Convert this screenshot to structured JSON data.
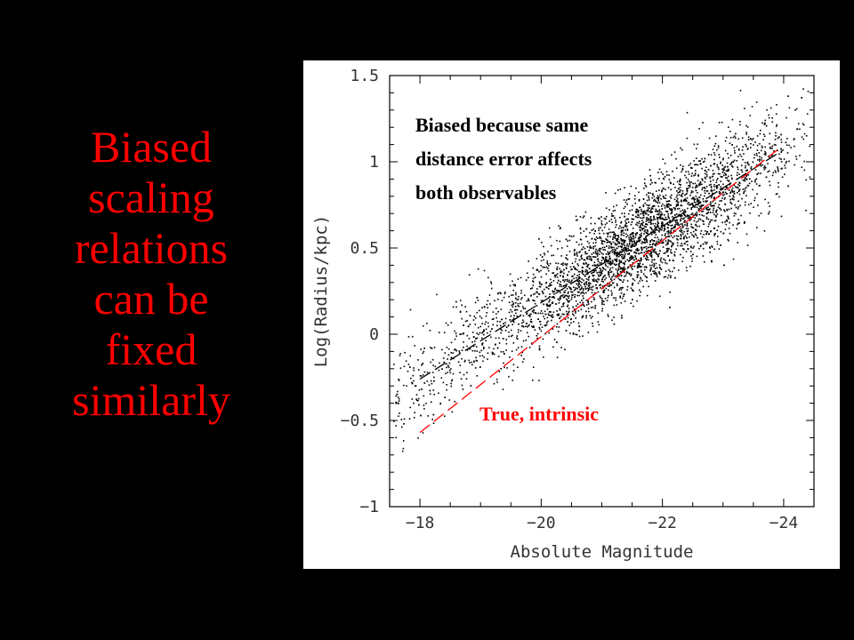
{
  "slide": {
    "text_lines": [
      "Biased",
      "scaling",
      "relations",
      "can be",
      "fixed",
      "similarly"
    ],
    "text_color": "#ff0000",
    "background": "#000000"
  },
  "chart_data": {
    "type": "scatter",
    "xlabel": "Absolute Magnitude",
    "ylabel": "Log(Radius/kpc)",
    "xlim": [
      -17.5,
      -24.5
    ],
    "ylim": [
      -1,
      1.5
    ],
    "x_ticks": [
      -18,
      -20,
      -22,
      -24
    ],
    "x_tick_labels": [
      "−18",
      "−20",
      "−22",
      "−24"
    ],
    "y_ticks": [
      1.5,
      1,
      0.5,
      0,
      -0.5,
      -1
    ],
    "y_tick_labels": [
      "1.5",
      "1",
      "0.5",
      "0",
      "−0.5",
      "−1"
    ],
    "grid": false,
    "point_color": "#000000",
    "series": [
      {
        "style": "dashed",
        "color": "#000000",
        "x": [
          -18.0,
          -24.0
        ],
        "y": [
          -0.26,
          1.07
        ]
      },
      {
        "style": "dashed",
        "color": "#ff0000",
        "x": [
          -18.0,
          -23.9
        ],
        "y": [
          -0.57,
          1.07
        ]
      }
    ],
    "annotations": [
      {
        "lines": [
          "Biased because same",
          "distance error affects",
          "both observables"
        ],
        "color": "#000000"
      },
      {
        "lines": [
          "True, intrinsic"
        ],
        "color": "#ff0000"
      }
    ]
  }
}
